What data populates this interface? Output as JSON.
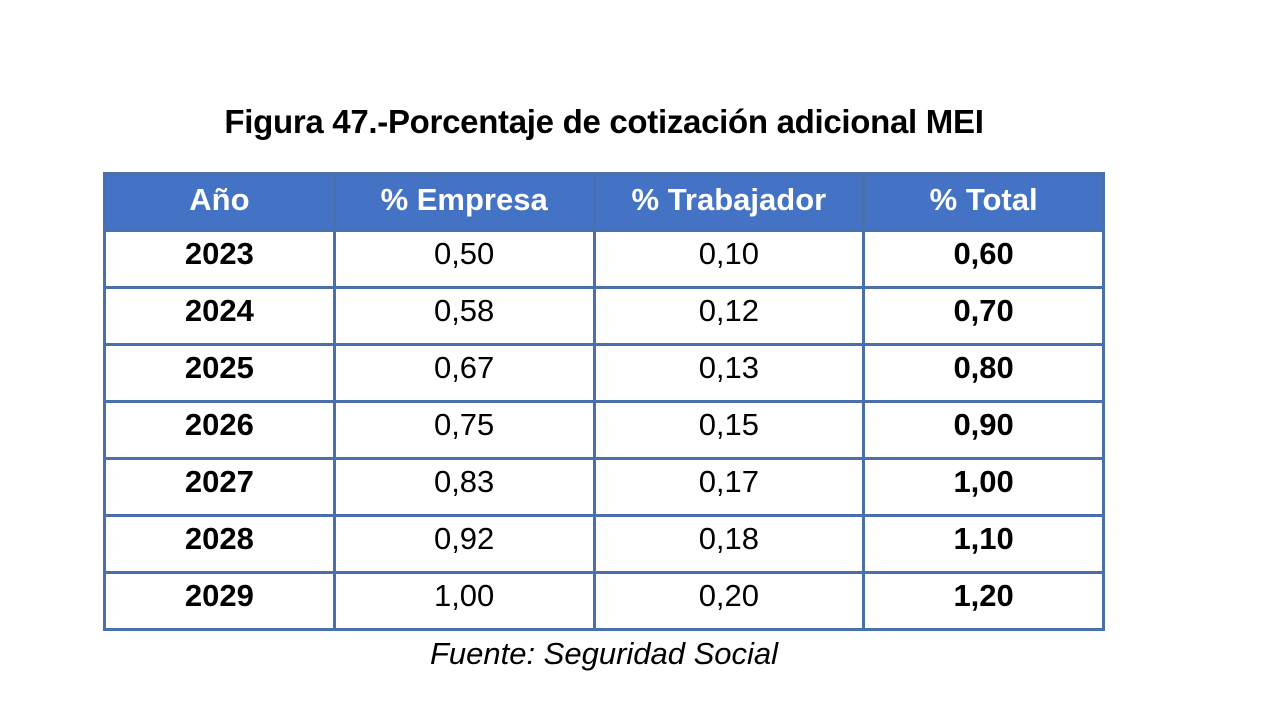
{
  "title": "Figura 47.-Porcentaje de cotización adicional MEI",
  "source": "Fuente: Seguridad Social",
  "colors": {
    "header_bg": "#4472C4",
    "header_text": "#FFFFFF",
    "border": "#4A70AB",
    "text": "#000000",
    "page_bg": "#FFFFFF"
  },
  "chart_data": {
    "type": "table",
    "title": "Figura 47.-Porcentaje de cotización adicional MEI",
    "columns": [
      "Año",
      "% Empresa",
      "% Trabajador",
      "% Total"
    ],
    "column_widths_pct": [
      23,
      26,
      27,
      24
    ],
    "rows": [
      [
        "2023",
        "0,50",
        "0,10",
        "0,60"
      ],
      [
        "2024",
        "0,58",
        "0,12",
        "0,70"
      ],
      [
        "2025",
        "0,67",
        "0,13",
        "0,80"
      ],
      [
        "2026",
        "0,75",
        "0,15",
        "0,90"
      ],
      [
        "2027",
        "0,83",
        "0,17",
        "1,00"
      ],
      [
        "2028",
        "0,92",
        "0,18",
        "1,10"
      ],
      [
        "2029",
        "1,00",
        "0,20",
        "1,20"
      ]
    ],
    "bold_columns": [
      0,
      3
    ],
    "source": "Fuente: Seguridad Social"
  }
}
